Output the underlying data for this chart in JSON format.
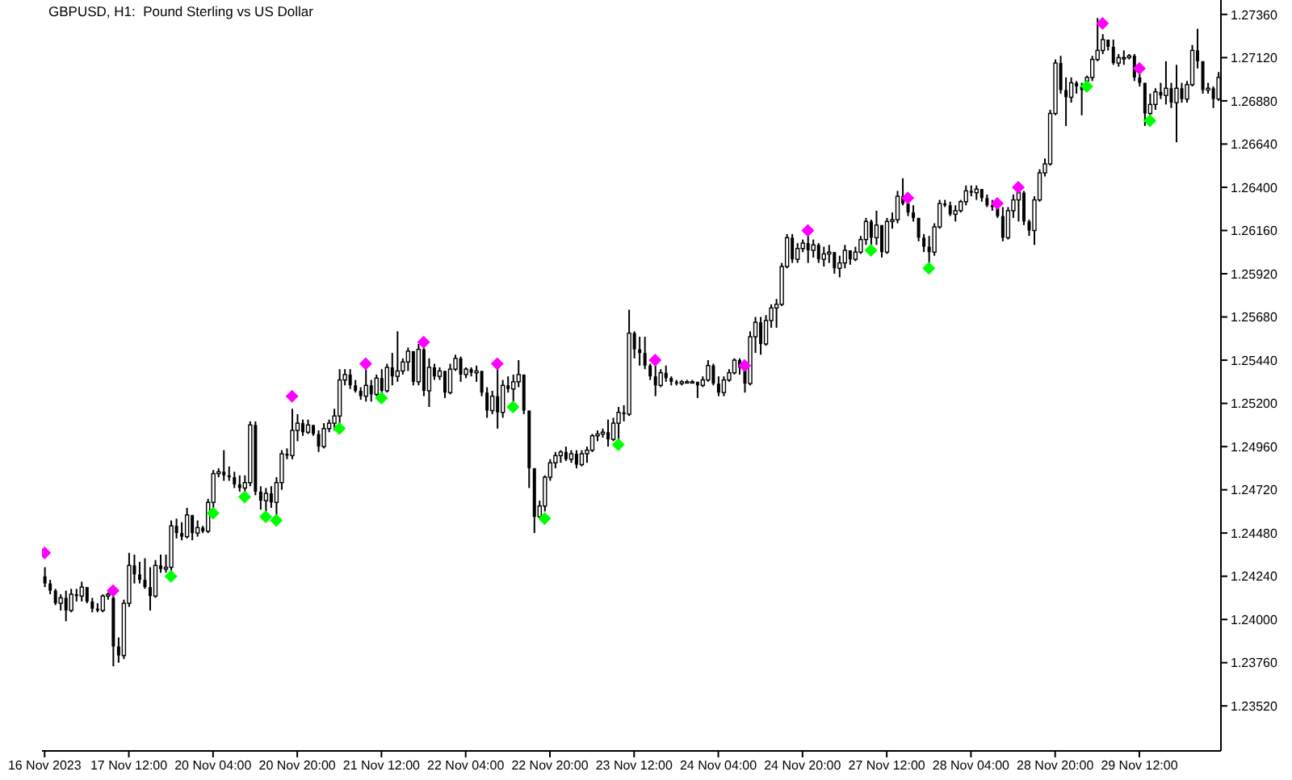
{
  "chart_data": {
    "type": "candlestick",
    "title": "GBPUSD, H1:  Pound Sterling vs US Dollar",
    "color": "#000000",
    "categories": [
      "16 Nov 2023",
      null,
      null,
      null,
      null,
      null,
      null,
      null,
      null,
      null,
      null,
      null,
      null,
      null,
      null,
      null,
      "17 Nov 12:00",
      null,
      null,
      null,
      null,
      null,
      null,
      null,
      null,
      null,
      null,
      null,
      null,
      null,
      null,
      null,
      "20 Nov 04:00",
      null,
      null,
      null,
      null,
      null,
      null,
      null,
      null,
      null,
      null,
      null,
      null,
      null,
      null,
      null,
      "20 Nov 20:00",
      null,
      null,
      null,
      null,
      null,
      null,
      null,
      null,
      null,
      null,
      null,
      null,
      null,
      null,
      null,
      "21 Nov 12:00",
      null,
      null,
      null,
      null,
      null,
      null,
      null,
      null,
      null,
      null,
      null,
      null,
      null,
      null,
      null,
      "22 Nov 04:00",
      null,
      null,
      null,
      null,
      null,
      null,
      null,
      null,
      null,
      null,
      null,
      null,
      null,
      null,
      null,
      "22 Nov 20:00",
      null,
      null,
      null,
      null,
      null,
      null,
      null,
      null,
      null,
      null,
      null,
      null,
      null,
      null,
      null,
      "23 Nov 12:00",
      null,
      null,
      null,
      null,
      null,
      null,
      null,
      null,
      null,
      null,
      null,
      null,
      null,
      null,
      null,
      "24 Nov 04:00",
      null,
      null,
      null,
      null,
      null,
      null,
      null,
      null,
      null,
      null,
      null,
      null,
      null,
      null,
      null,
      "24 Nov 20:00",
      null,
      null,
      null,
      null,
      null,
      null,
      null,
      null,
      null,
      null,
      null,
      null,
      null,
      null,
      null,
      "27 Nov 12:00",
      null,
      null,
      null,
      null,
      null,
      null,
      null,
      null,
      null,
      null,
      null,
      null,
      null,
      null,
      null,
      "28 Nov 04:00",
      null,
      null,
      null,
      null,
      null,
      null,
      null,
      null,
      null,
      null,
      null,
      null,
      null,
      null,
      null,
      "28 Nov 20:00",
      null,
      null,
      null,
      null,
      null,
      null,
      null,
      null,
      null,
      null,
      null,
      null,
      null,
      null,
      null,
      "29 Nov 12:00",
      null,
      null,
      null,
      null,
      null,
      null,
      null,
      null,
      null,
      null,
      null,
      null,
      null,
      null,
      null
    ],
    "ohlc": [
      [
        1.2424,
        1.2429,
        1.2418,
        1.242
      ],
      [
        1.242,
        1.2422,
        1.2414,
        1.2416
      ],
      [
        1.2416,
        1.2417,
        1.2408,
        1.2409
      ],
      [
        1.2409,
        1.2414,
        1.2405,
        1.2412
      ],
      [
        1.2412,
        1.2416,
        1.2399,
        1.2405
      ],
      [
        1.2405,
        1.2417,
        1.2404,
        1.2414
      ],
      [
        1.2414,
        1.2417,
        1.241,
        1.2413
      ],
      [
        1.2413,
        1.2421,
        1.241,
        1.2418
      ],
      [
        1.2418,
        1.2418,
        1.2409,
        1.241
      ],
      [
        1.241,
        1.2412,
        1.2404,
        1.2406
      ],
      [
        1.2406,
        1.2409,
        1.2404,
        1.2405
      ],
      [
        1.2405,
        1.2414,
        1.2404,
        1.2413
      ],
      [
        1.2413,
        1.2415,
        1.2411,
        1.2414
      ],
      [
        1.2412,
        1.2414,
        1.2374,
        1.2385
      ],
      [
        1.2385,
        1.239,
        1.2376,
        1.238
      ],
      [
        1.238,
        1.2411,
        1.2378,
        1.2409
      ],
      [
        1.2409,
        1.2437,
        1.2407,
        1.243
      ],
      [
        1.243,
        1.2436,
        1.242,
        1.2425
      ],
      [
        1.2425,
        1.2432,
        1.242,
        1.2422
      ],
      [
        1.2422,
        1.2434,
        1.2417,
        1.2418
      ],
      [
        1.2418,
        1.2429,
        1.2405,
        1.2413
      ],
      [
        1.2413,
        1.2433,
        1.2412,
        1.243
      ],
      [
        1.243,
        1.2436,
        1.2426,
        1.2428
      ],
      [
        1.2428,
        1.2436,
        1.2426,
        1.2429
      ],
      [
        1.2429,
        1.2455,
        1.2427,
        1.2452
      ],
      [
        1.2452,
        1.2456,
        1.2445,
        1.2448
      ],
      [
        1.2448,
        1.2454,
        1.2444,
        1.2446
      ],
      [
        1.2446,
        1.2462,
        1.2445,
        1.2458
      ],
      [
        1.2458,
        1.2458,
        1.2444,
        1.2448
      ],
      [
        1.2448,
        1.2455,
        1.2446,
        1.2451
      ],
      [
        1.2451,
        1.2452,
        1.2448,
        1.2449
      ],
      [
        1.2449,
        1.2467,
        1.2448,
        1.2465
      ],
      [
        1.2465,
        1.2483,
        1.2462,
        1.2481
      ],
      [
        1.2481,
        1.2484,
        1.2479,
        1.2482
      ],
      [
        1.2482,
        1.2494,
        1.2477,
        1.248
      ],
      [
        1.248,
        1.2485,
        1.2477,
        1.2479
      ],
      [
        1.2479,
        1.2482,
        1.2473,
        1.2475
      ],
      [
        1.2475,
        1.248,
        1.2471,
        1.2473
      ],
      [
        1.2473,
        1.248,
        1.247,
        1.2476
      ],
      [
        1.2476,
        1.251,
        1.2474,
        1.2508
      ],
      [
        1.2508,
        1.251,
        1.2469,
        1.2471
      ],
      [
        1.2471,
        1.2474,
        1.2461,
        1.2466
      ],
      [
        1.2466,
        1.2473,
        1.246,
        1.247
      ],
      [
        1.247,
        1.2474,
        1.2462,
        1.2465
      ],
      [
        1.2465,
        1.2479,
        1.2458,
        1.2476
      ],
      [
        1.2476,
        1.2494,
        1.2472,
        1.2492
      ],
      [
        1.2492,
        1.2495,
        1.2489,
        1.2491
      ],
      [
        1.2491,
        1.2517,
        1.2489,
        1.2505
      ],
      [
        1.2505,
        1.2514,
        1.2499,
        1.2509
      ],
      [
        1.2509,
        1.2511,
        1.2502,
        1.2504
      ],
      [
        1.2504,
        1.2511,
        1.2503,
        1.2508
      ],
      [
        1.2508,
        1.2508,
        1.2502,
        1.2503
      ],
      [
        1.2503,
        1.2505,
        1.2493,
        1.2496
      ],
      [
        1.2496,
        1.2509,
        1.2495,
        1.2506
      ],
      [
        1.2506,
        1.2511,
        1.2504,
        1.2509
      ],
      [
        1.2509,
        1.2517,
        1.2505,
        1.2513
      ],
      [
        1.2513,
        1.2539,
        1.2509,
        1.2533
      ],
      [
        1.2533,
        1.2539,
        1.253,
        1.2536
      ],
      [
        1.2536,
        1.2539,
        1.2528,
        1.253
      ],
      [
        1.253,
        1.2533,
        1.2526,
        1.2527
      ],
      [
        1.2527,
        1.2529,
        1.2522,
        1.2524
      ],
      [
        1.2524,
        1.2539,
        1.2521,
        1.253
      ],
      [
        1.253,
        1.2533,
        1.2521,
        1.2525
      ],
      [
        1.2525,
        1.2536,
        1.2524,
        1.2534
      ],
      [
        1.2534,
        1.2539,
        1.2525,
        1.2527
      ],
      [
        1.2527,
        1.2542,
        1.2526,
        1.254
      ],
      [
        1.254,
        1.2548,
        1.253,
        1.2535
      ],
      [
        1.2535,
        1.256,
        1.2532,
        1.2538
      ],
      [
        1.2538,
        1.2545,
        1.2536,
        1.2543
      ],
      [
        1.2543,
        1.2551,
        1.2538,
        1.2549
      ],
      [
        1.2549,
        1.2549,
        1.253,
        1.2532
      ],
      [
        1.2532,
        1.2553,
        1.253,
        1.255
      ],
      [
        1.255,
        1.2551,
        1.2524,
        1.2527
      ],
      [
        1.2527,
        1.2545,
        1.2518,
        1.254
      ],
      [
        1.254,
        1.2542,
        1.2533,
        1.2535
      ],
      [
        1.2535,
        1.254,
        1.2533,
        1.2538
      ],
      [
        1.2538,
        1.2538,
        1.2523,
        1.2526
      ],
      [
        1.2526,
        1.2542,
        1.2525,
        1.2539
      ],
      [
        1.2539,
        1.2547,
        1.2538,
        1.2545
      ],
      [
        1.2545,
        1.2546,
        1.2532,
        1.2536
      ],
      [
        1.2536,
        1.254,
        1.2534,
        1.2539
      ],
      [
        1.2539,
        1.254,
        1.2535,
        1.2537
      ],
      [
        1.2537,
        1.2541,
        1.2532,
        1.2538
      ],
      [
        1.2538,
        1.2538,
        1.2524,
        1.2526
      ],
      [
        1.2526,
        1.2529,
        1.2512,
        1.2516
      ],
      [
        1.2516,
        1.2527,
        1.2514,
        1.2524
      ],
      [
        1.2524,
        1.2541,
        1.2506,
        1.2515
      ],
      [
        1.2515,
        1.2533,
        1.2512,
        1.253
      ],
      [
        1.253,
        1.2535,
        1.2526,
        1.2528
      ],
      [
        1.2528,
        1.2536,
        1.2521,
        1.2532
      ],
      [
        1.2532,
        1.2544,
        1.2529,
        1.2536
      ],
      [
        1.2536,
        1.2536,
        1.2514,
        1.2516
      ],
      [
        1.2516,
        1.2516,
        1.2473,
        1.2484
      ],
      [
        1.2484,
        1.2484,
        1.2448,
        1.2457
      ],
      [
        1.2457,
        1.2466,
        1.2456,
        1.2463
      ],
      [
        1.2463,
        1.248,
        1.246,
        1.2479
      ],
      [
        1.2479,
        1.2489,
        1.2477,
        1.2487
      ],
      [
        1.2487,
        1.2493,
        1.2484,
        1.2491
      ],
      [
        1.2491,
        1.2494,
        1.2487,
        1.2493
      ],
      [
        1.2493,
        1.2496,
        1.2488,
        1.2489
      ],
      [
        1.2489,
        1.2494,
        1.2487,
        1.2492
      ],
      [
        1.2492,
        1.2494,
        1.2484,
        1.2486
      ],
      [
        1.2486,
        1.2494,
        1.2485,
        1.2492
      ],
      [
        1.2492,
        1.2496,
        1.2487,
        1.2494
      ],
      [
        1.2494,
        1.2503,
        1.2493,
        1.2502
      ],
      [
        1.2502,
        1.2505,
        1.2499,
        1.2503
      ],
      [
        1.2503,
        1.2506,
        1.2501,
        1.2504
      ],
      [
        1.2504,
        1.2511,
        1.2496,
        1.25
      ],
      [
        1.25,
        1.2512,
        1.2499,
        1.2509
      ],
      [
        1.2509,
        1.2518,
        1.25,
        1.2515
      ],
      [
        1.2515,
        1.2519,
        1.251,
        1.2514
      ],
      [
        1.2514,
        1.2572,
        1.2513,
        1.2559
      ],
      [
        1.2559,
        1.256,
        1.2545,
        1.255
      ],
      [
        1.255,
        1.2557,
        1.2541,
        1.2548
      ],
      [
        1.2548,
        1.2557,
        1.2539,
        1.2541
      ],
      [
        1.2541,
        1.2542,
        1.2533,
        1.2535
      ],
      [
        1.2535,
        1.2541,
        1.2524,
        1.253
      ],
      [
        1.253,
        1.2539,
        1.2529,
        1.2537
      ],
      [
        1.2537,
        1.2541,
        1.2532,
        1.2534
      ],
      [
        1.2534,
        1.2535,
        1.253,
        1.2532
      ],
      [
        1.2532,
        1.2533,
        1.253,
        1.2531
      ],
      [
        1.2531,
        1.2533,
        1.253,
        1.2532
      ],
      [
        1.2532,
        1.2533,
        1.2531,
        1.2532
      ],
      [
        1.2532,
        1.2533,
        1.2531,
        1.2532
      ],
      [
        1.2532,
        1.2532,
        1.2523,
        1.253
      ],
      [
        1.253,
        1.2535,
        1.2529,
        1.2533
      ],
      [
        1.2533,
        1.2544,
        1.2532,
        1.2541
      ],
      [
        1.2541,
        1.2542,
        1.253,
        1.2531
      ],
      [
        1.2531,
        1.2535,
        1.2524,
        1.2526
      ],
      [
        1.2526,
        1.2535,
        1.2524,
        1.2533
      ],
      [
        1.2533,
        1.2539,
        1.2532,
        1.2537
      ],
      [
        1.2537,
        1.2545,
        1.2536,
        1.2544
      ],
      [
        1.2544,
        1.2545,
        1.2536,
        1.254
      ],
      [
        1.254,
        1.254,
        1.2526,
        1.2531
      ],
      [
        1.2531,
        1.256,
        1.253,
        1.2557
      ],
      [
        1.2557,
        1.2568,
        1.2548,
        1.2565
      ],
      [
        1.2565,
        1.2568,
        1.2547,
        1.2553
      ],
      [
        1.2553,
        1.2569,
        1.2552,
        1.2566
      ],
      [
        1.2566,
        1.2575,
        1.2562,
        1.2573
      ],
      [
        1.2573,
        1.2578,
        1.2562,
        1.2575
      ],
      [
        1.2575,
        1.2598,
        1.2574,
        1.2596
      ],
      [
        1.2596,
        1.2614,
        1.2595,
        1.2612
      ],
      [
        1.2612,
        1.2614,
        1.2598,
        1.26
      ],
      [
        1.26,
        1.2609,
        1.2598,
        1.2606
      ],
      [
        1.2606,
        1.2611,
        1.2604,
        1.2609
      ],
      [
        1.2609,
        1.2613,
        1.2598,
        1.2605
      ],
      [
        1.2605,
        1.2611,
        1.2601,
        1.2608
      ],
      [
        1.2608,
        1.2609,
        1.2598,
        1.26
      ],
      [
        1.26,
        1.2607,
        1.2596,
        1.2603
      ],
      [
        1.2603,
        1.2608,
        1.2598,
        1.2604
      ],
      [
        1.2604,
        1.2604,
        1.2592,
        1.2595
      ],
      [
        1.2595,
        1.2602,
        1.259,
        1.2598
      ],
      [
        1.2598,
        1.2608,
        1.2595,
        1.2605
      ],
      [
        1.2605,
        1.2605,
        1.2597,
        1.26
      ],
      [
        1.26,
        1.2607,
        1.2599,
        1.2604
      ],
      [
        1.2604,
        1.2613,
        1.2603,
        1.2611
      ],
      [
        1.2611,
        1.2623,
        1.2608,
        1.2621
      ],
      [
        1.2621,
        1.2622,
        1.2607,
        1.2612
      ],
      [
        1.2612,
        1.2627,
        1.2608,
        1.2619
      ],
      [
        1.2619,
        1.2619,
        1.2601,
        1.2604
      ],
      [
        1.2604,
        1.2623,
        1.2603,
        1.2621
      ],
      [
        1.2621,
        1.2626,
        1.2617,
        1.2622
      ],
      [
        1.2622,
        1.2638,
        1.262,
        1.2635
      ],
      [
        1.2635,
        1.2645,
        1.263,
        1.2631
      ],
      [
        1.2631,
        1.2632,
        1.2624,
        1.2626
      ],
      [
        1.2626,
        1.263,
        1.2621,
        1.2623
      ],
      [
        1.2623,
        1.2623,
        1.261,
        1.2612
      ],
      [
        1.2612,
        1.2614,
        1.2604,
        1.2607
      ],
      [
        1.2607,
        1.2613,
        1.2598,
        1.2604
      ],
      [
        1.2604,
        1.262,
        1.2602,
        1.2618
      ],
      [
        1.2618,
        1.2633,
        1.2617,
        1.2631
      ],
      [
        1.2631,
        1.2633,
        1.2629,
        1.263
      ],
      [
        1.263,
        1.2632,
        1.2624,
        1.2625
      ],
      [
        1.2625,
        1.263,
        1.2621,
        1.2627
      ],
      [
        1.2627,
        1.2633,
        1.2626,
        1.2632
      ],
      [
        1.2632,
        1.2641,
        1.263,
        1.2638
      ],
      [
        1.2638,
        1.2641,
        1.2635,
        1.2637
      ],
      [
        1.2637,
        1.2641,
        1.2633,
        1.2639
      ],
      [
        1.2639,
        1.2639,
        1.2632,
        1.2634
      ],
      [
        1.2634,
        1.2636,
        1.2629,
        1.263
      ],
      [
        1.263,
        1.2633,
        1.2627,
        1.2629
      ],
      [
        1.2629,
        1.263,
        1.2623,
        1.2624
      ],
      [
        1.2624,
        1.2629,
        1.261,
        1.2612
      ],
      [
        1.2612,
        1.2629,
        1.2611,
        1.2627
      ],
      [
        1.2627,
        1.2636,
        1.2623,
        1.2633
      ],
      [
        1.2633,
        1.2639,
        1.2621,
        1.2637
      ],
      [
        1.2637,
        1.2638,
        1.2619,
        1.2621
      ],
      [
        1.2621,
        1.2622,
        1.2613,
        1.2616
      ],
      [
        1.2616,
        1.2635,
        1.2608,
        1.2633
      ],
      [
        1.2633,
        1.265,
        1.2632,
        1.2648
      ],
      [
        1.2648,
        1.2656,
        1.2646,
        1.2653
      ],
      [
        1.2653,
        1.2683,
        1.2652,
        1.2681
      ],
      [
        1.2681,
        1.2711,
        1.268,
        1.2709
      ],
      [
        1.2709,
        1.2713,
        1.2692,
        1.2694
      ],
      [
        1.2694,
        1.2701,
        1.2674,
        1.269
      ],
      [
        1.269,
        1.2701,
        1.2687,
        1.2698
      ],
      [
        1.2698,
        1.2699,
        1.2692,
        1.2696
      ],
      [
        1.2696,
        1.2698,
        1.268,
        1.2694
      ],
      [
        1.2699,
        1.2702,
        1.2698,
        1.2701
      ],
      [
        1.2701,
        1.2713,
        1.2699,
        1.2711
      ],
      [
        1.2711,
        1.2734,
        1.271,
        1.2716
      ],
      [
        1.2716,
        1.2725,
        1.2714,
        1.2722
      ],
      [
        1.2722,
        1.2722,
        1.2716,
        1.2718
      ],
      [
        1.2718,
        1.2722,
        1.2708,
        1.2709
      ],
      [
        1.2709,
        1.2714,
        1.2707,
        1.2712
      ],
      [
        1.2712,
        1.2716,
        1.2708,
        1.2712
      ],
      [
        1.2712,
        1.2714,
        1.2711,
        1.2713
      ],
      [
        1.2713,
        1.2714,
        1.2699,
        1.2701
      ],
      [
        1.2701,
        1.2703,
        1.2696,
        1.2698
      ],
      [
        1.2698,
        1.2698,
        1.2674,
        1.2681
      ],
      [
        1.2681,
        1.2692,
        1.268,
        1.2686
      ],
      [
        1.2686,
        1.2695,
        1.2683,
        1.2693
      ],
      [
        1.2693,
        1.2698,
        1.2689,
        1.2691
      ],
      [
        1.2691,
        1.271,
        1.2686,
        1.2695
      ],
      [
        1.2695,
        1.2698,
        1.2684,
        1.2687
      ],
      [
        1.2687,
        1.2708,
        1.2665,
        1.2695
      ],
      [
        1.2695,
        1.2698,
        1.2687,
        1.2689
      ],
      [
        1.2689,
        1.2699,
        1.2687,
        1.2697
      ],
      [
        1.2697,
        1.2719,
        1.2696,
        1.2716
      ],
      [
        1.2716,
        1.2728,
        1.2706,
        1.271
      ],
      [
        1.271,
        1.271,
        1.2692,
        1.2694
      ],
      [
        1.2694,
        1.2698,
        1.2692,
        1.2695
      ],
      [
        1.2695,
        1.2696,
        1.2684,
        1.2689
      ],
      [
        1.2689,
        1.2704,
        1.2688,
        1.2701
      ]
    ],
    "series": [
      {
        "type": "scatter",
        "color": "#ff00ff",
        "values": [
          1.2437,
          null,
          null,
          null,
          null,
          null,
          null,
          null,
          null,
          null,
          null,
          null,
          null,
          1.2416,
          null,
          null,
          null,
          null,
          null,
          null,
          null,
          null,
          null,
          null,
          null,
          null,
          null,
          null,
          null,
          null,
          null,
          null,
          null,
          null,
          null,
          null,
          null,
          null,
          null,
          null,
          null,
          null,
          null,
          null,
          null,
          null,
          null,
          1.2524,
          null,
          null,
          null,
          null,
          null,
          null,
          null,
          null,
          null,
          null,
          null,
          null,
          null,
          1.2542,
          null,
          null,
          null,
          null,
          null,
          null,
          null,
          null,
          null,
          null,
          1.2554,
          null,
          null,
          null,
          null,
          null,
          null,
          null,
          null,
          null,
          null,
          null,
          null,
          null,
          1.2542,
          null,
          null,
          null,
          null,
          null,
          null,
          null,
          null,
          null,
          null,
          null,
          null,
          null,
          null,
          null,
          null,
          null,
          null,
          null,
          null,
          null,
          null,
          null,
          null,
          null,
          null,
          null,
          null,
          null,
          1.2544,
          null,
          null,
          null,
          null,
          null,
          null,
          null,
          null,
          null,
          null,
          null,
          null,
          null,
          null,
          null,
          null,
          1.2541,
          null,
          null,
          null,
          null,
          null,
          null,
          null,
          null,
          null,
          null,
          null,
          1.2616,
          null,
          null,
          null,
          null,
          null,
          null,
          null,
          null,
          null,
          null,
          null,
          null,
          null,
          null,
          null,
          null,
          null,
          null,
          1.2634,
          null,
          null,
          null,
          null,
          null,
          null,
          null,
          null,
          null,
          null,
          null,
          null,
          null,
          null,
          null,
          null,
          1.2631,
          null,
          null,
          null,
          1.264,
          null,
          null,
          null,
          null,
          null,
          null,
          null,
          null,
          null,
          null,
          null,
          null,
          null,
          null,
          null,
          1.2731,
          null,
          null,
          null,
          null,
          null,
          null,
          1.2706,
          null,
          null,
          null,
          null,
          null,
          null,
          null,
          null,
          null,
          null,
          null,
          null,
          null,
          null,
          null
        ]
      },
      {
        "type": "scatter",
        "color": "#00ff00",
        "values": [
          null,
          null,
          null,
          null,
          null,
          null,
          null,
          null,
          null,
          null,
          null,
          null,
          null,
          null,
          null,
          null,
          null,
          null,
          null,
          null,
          null,
          null,
          null,
          null,
          1.2424,
          null,
          null,
          null,
          null,
          null,
          null,
          null,
          1.2459,
          null,
          null,
          null,
          null,
          null,
          1.2468,
          null,
          null,
          null,
          1.2457,
          null,
          1.2455,
          null,
          null,
          null,
          null,
          null,
          null,
          null,
          null,
          null,
          null,
          null,
          1.2506,
          null,
          null,
          null,
          null,
          null,
          null,
          null,
          1.2523,
          null,
          null,
          null,
          null,
          null,
          null,
          null,
          null,
          null,
          null,
          null,
          null,
          null,
          null,
          null,
          null,
          null,
          null,
          null,
          null,
          null,
          null,
          null,
          null,
          1.2518,
          null,
          null,
          null,
          null,
          null,
          1.2456,
          null,
          null,
          null,
          null,
          null,
          null,
          null,
          null,
          null,
          null,
          null,
          null,
          null,
          1.2497,
          null,
          null,
          null,
          null,
          null,
          null,
          null,
          null,
          null,
          null,
          null,
          null,
          null,
          null,
          null,
          null,
          null,
          null,
          null,
          null,
          null,
          null,
          null,
          null,
          null,
          null,
          null,
          null,
          null,
          null,
          null,
          null,
          null,
          null,
          null,
          null,
          null,
          null,
          null,
          null,
          null,
          null,
          null,
          null,
          null,
          null,
          null,
          1.2605,
          null,
          null,
          null,
          null,
          null,
          null,
          null,
          null,
          null,
          null,
          1.2595,
          null,
          null,
          null,
          null,
          null,
          null,
          null,
          null,
          null,
          null,
          null,
          null,
          null,
          null,
          null,
          null,
          null,
          null,
          null,
          null,
          null,
          null,
          null,
          null,
          null,
          null,
          null,
          null,
          null,
          1.2696,
          null,
          null,
          null,
          null,
          null,
          null,
          null,
          null,
          null,
          null,
          null,
          1.2677,
          null,
          null,
          null,
          null,
          null,
          null,
          null,
          null,
          null,
          null,
          null,
          null,
          null
        ]
      }
    ],
    "marker": "diamond",
    "ylim": [
      1.2327,
      1.2744
    ],
    "yticks": [
      {
        "value": 1.2352,
        "label": "1.23520"
      },
      {
        "value": 1.2376,
        "label": "1.23760"
      },
      {
        "value": 1.24,
        "label": "1.24000"
      },
      {
        "value": 1.2424,
        "label": "1.24240"
      },
      {
        "value": 1.2448,
        "label": "1.24480"
      },
      {
        "value": 1.2472,
        "label": "1.24720"
      },
      {
        "value": 1.2496,
        "label": "1.24960"
      },
      {
        "value": 1.252,
        "label": "1.25200"
      },
      {
        "value": 1.2544,
        "label": "1.25440"
      },
      {
        "value": 1.2568,
        "label": "1.25680"
      },
      {
        "value": 1.2592,
        "label": "1.25920"
      },
      {
        "value": 1.2616,
        "label": "1.26160"
      },
      {
        "value": 1.264,
        "label": "1.26400"
      },
      {
        "value": 1.2664,
        "label": "1.26640"
      },
      {
        "value": 1.2688,
        "label": "1.26880"
      },
      {
        "value": 1.2712,
        "label": "1.27120"
      },
      {
        "value": 1.2736,
        "label": "1.27360"
      }
    ]
  }
}
